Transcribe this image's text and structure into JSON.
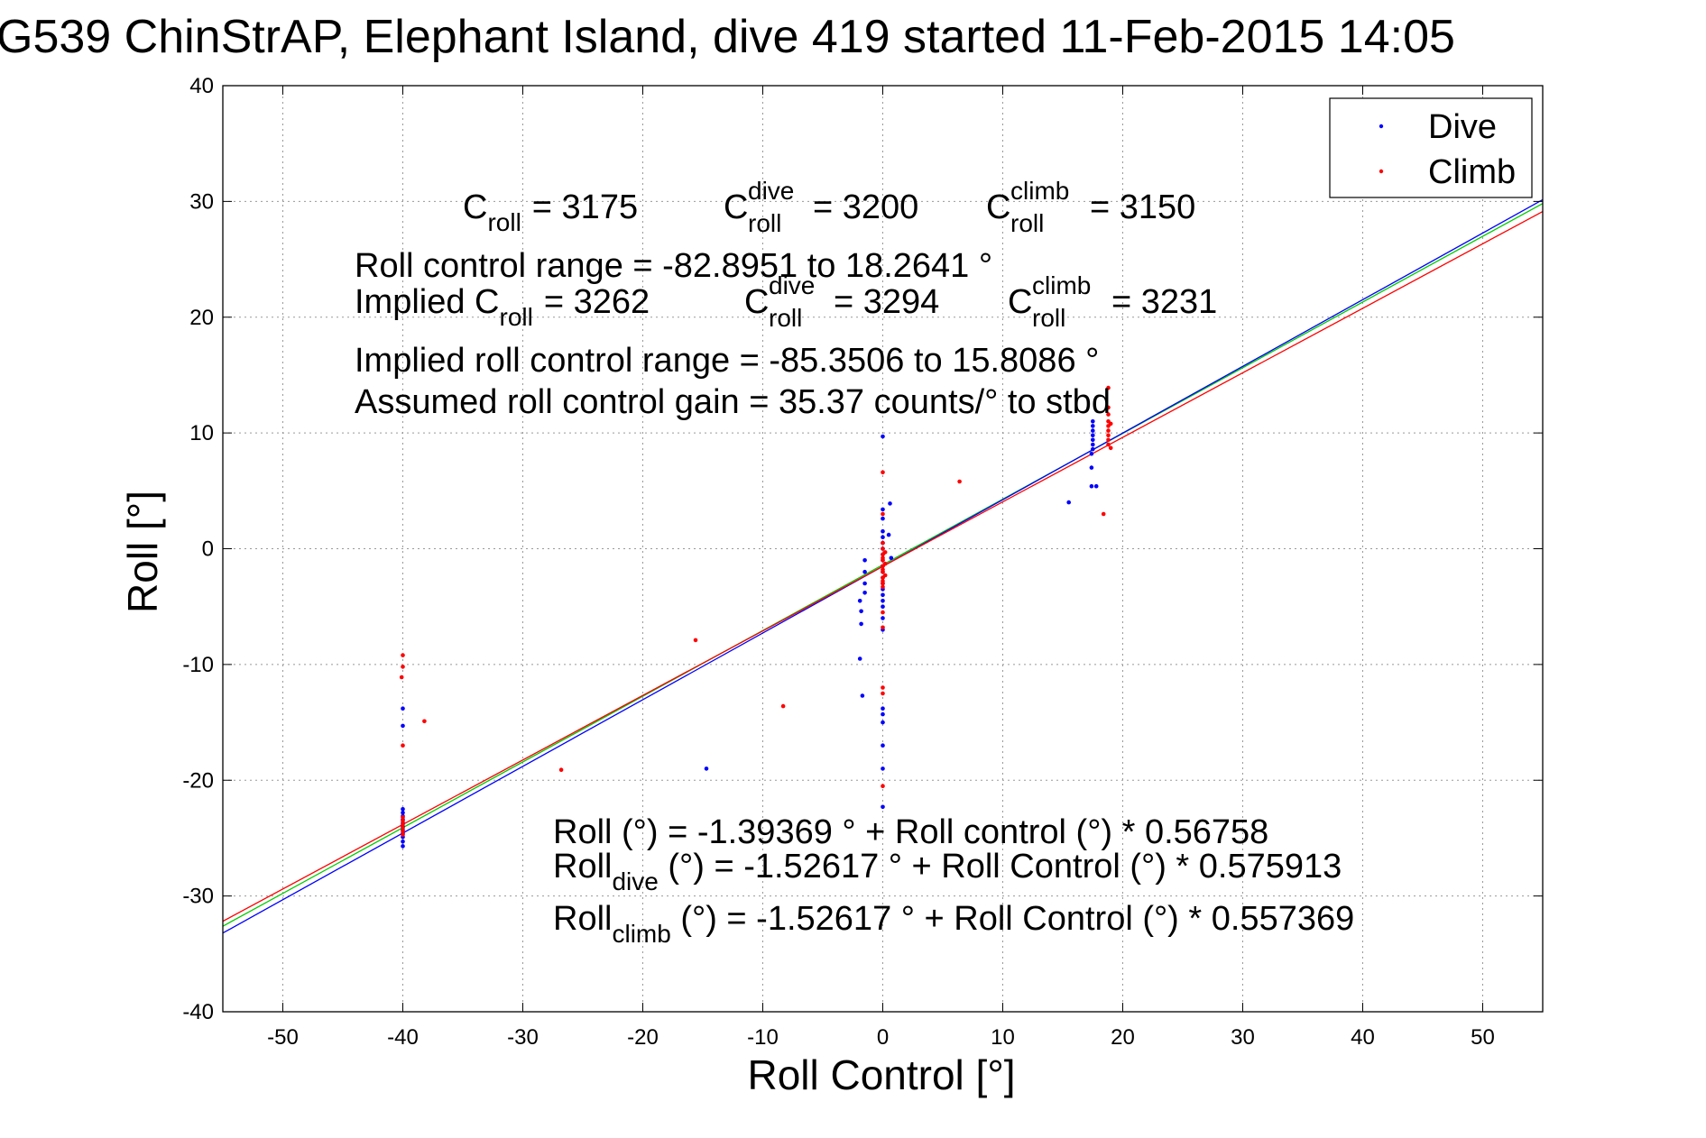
{
  "chart_data": {
    "type": "scatter",
    "title": "G539 ChinStrAP, Elephant Island, dive 419 started 11-Feb-2015 14:05",
    "xlabel": "Roll Control [°]",
    "ylabel": "Roll [°]",
    "xlim": [
      -55,
      55
    ],
    "ylim": [
      -40,
      40
    ],
    "xticks": [
      -50,
      -40,
      -30,
      -20,
      -10,
      0,
      10,
      20,
      30,
      40,
      50
    ],
    "yticks": [
      -40,
      -30,
      -20,
      -10,
      0,
      10,
      20,
      30,
      40
    ],
    "grid": true,
    "legend": {
      "placement": "top-right",
      "entries": [
        {
          "label": "Dive",
          "color": "#0000ff"
        },
        {
          "label": "Climb",
          "color": "#ff0000"
        }
      ]
    },
    "series": [
      {
        "name": "Dive",
        "color": "#0000ff",
        "points": [
          [
            -40,
            -22.5
          ],
          [
            -40,
            -22.8
          ],
          [
            -40,
            -23.1
          ],
          [
            -40,
            -23.4
          ],
          [
            -40,
            -23.7
          ],
          [
            -40,
            -24.0
          ],
          [
            -40,
            -24.3
          ],
          [
            -40,
            -24.6
          ],
          [
            -40,
            -24.9
          ],
          [
            -40,
            -25.3
          ],
          [
            -40,
            -25.7
          ],
          [
            -40,
            -13.8
          ],
          [
            -40,
            -15.3
          ],
          [
            -14.7,
            -19.0
          ],
          [
            -1.9,
            -9.5
          ],
          [
            -1.7,
            -12.7
          ],
          [
            -1.8,
            -5.4
          ],
          [
            -1.8,
            -6.5
          ],
          [
            -1.9,
            -4.5
          ],
          [
            -1.5,
            -1.0
          ],
          [
            -1.5,
            -2.0
          ],
          [
            -1.5,
            -3.0
          ],
          [
            -1.5,
            -3.8
          ],
          [
            0,
            1.5
          ],
          [
            0,
            1.0
          ],
          [
            0,
            0.5
          ],
          [
            0,
            0.0
          ],
          [
            0,
            -0.5
          ],
          [
            0,
            -1.0
          ],
          [
            0,
            -1.5
          ],
          [
            0,
            -2.0
          ],
          [
            0,
            -2.5
          ],
          [
            0,
            -3.0
          ],
          [
            0,
            -3.5
          ],
          [
            0,
            -4.0
          ],
          [
            0,
            -4.5
          ],
          [
            0,
            -5.0
          ],
          [
            0,
            -6.0
          ],
          [
            0,
            -7.0
          ],
          [
            0,
            9.7
          ],
          [
            0,
            3.4
          ],
          [
            0,
            2.6
          ],
          [
            0,
            -13.8
          ],
          [
            0,
            -14.3
          ],
          [
            0,
            -15.0
          ],
          [
            0,
            -17.0
          ],
          [
            0,
            -19.0
          ],
          [
            0,
            -22.3
          ],
          [
            0.6,
            3.9
          ],
          [
            0.5,
            1.2
          ],
          [
            0.7,
            -0.8
          ],
          [
            15.5,
            4.0
          ],
          [
            17.5,
            11.0
          ],
          [
            17.5,
            10.6
          ],
          [
            17.5,
            10.2
          ],
          [
            17.5,
            9.8
          ],
          [
            17.5,
            9.4
          ],
          [
            17.5,
            9.0
          ],
          [
            17.5,
            8.6
          ],
          [
            17.4,
            8.2
          ],
          [
            17.4,
            7.0
          ],
          [
            17.4,
            5.4
          ],
          [
            17.8,
            5.4
          ]
        ]
      },
      {
        "name": "Climb",
        "color": "#ff0000",
        "points": [
          [
            -40,
            -23.2
          ],
          [
            -40,
            -23.5
          ],
          [
            -40,
            -23.8
          ],
          [
            -40,
            -24.1
          ],
          [
            -40,
            -24.4
          ],
          [
            -40,
            -24.7
          ],
          [
            -40,
            -9.2
          ],
          [
            -40,
            -10.2
          ],
          [
            -40.1,
            -11.1
          ],
          [
            -40,
            -17.0
          ],
          [
            -38.2,
            -14.9
          ],
          [
            -26.8,
            -19.1
          ],
          [
            -15.6,
            -7.9
          ],
          [
            -8.3,
            -13.6
          ],
          [
            0,
            0.5
          ],
          [
            0,
            0.0
          ],
          [
            0,
            -0.5
          ],
          [
            0,
            -1.0
          ],
          [
            0,
            -1.5
          ],
          [
            0,
            -2.0
          ],
          [
            0,
            -2.5
          ],
          [
            0,
            -3.0
          ],
          [
            0,
            -3.3
          ],
          [
            0,
            -0.8
          ],
          [
            0,
            -1.8
          ],
          [
            0,
            -2.8
          ],
          [
            0.2,
            -0.3
          ],
          [
            0.2,
            -1.3
          ],
          [
            0.2,
            -2.3
          ],
          [
            0,
            6.6
          ],
          [
            0,
            3.0
          ],
          [
            0,
            -6.8
          ],
          [
            0,
            -12.0
          ],
          [
            0,
            -12.5
          ],
          [
            0,
            -20.5
          ],
          [
            0,
            -5.5
          ],
          [
            6.4,
            5.8
          ],
          [
            18.8,
            13.9
          ],
          [
            18.8,
            12.2
          ],
          [
            18.8,
            11.6
          ],
          [
            18.8,
            11.0
          ],
          [
            18.8,
            10.6
          ],
          [
            18.8,
            10.2
          ],
          [
            18.8,
            9.8
          ],
          [
            18.8,
            9.4
          ],
          [
            18.8,
            9.0
          ],
          [
            19.0,
            8.7
          ],
          [
            19.0,
            10.8
          ],
          [
            18.4,
            3.0
          ]
        ]
      }
    ],
    "fit_lines": [
      {
        "name": "all",
        "color": "#00cc00",
        "intercept": -1.39369,
        "slope": 0.56758
      },
      {
        "name": "dive",
        "color": "#0000ff",
        "intercept": -1.52617,
        "slope": 0.575913
      },
      {
        "name": "climb",
        "color": "#ff0000",
        "intercept": -1.52617,
        "slope": 0.557369
      }
    ],
    "annotations": {
      "c_roll": {
        "letter": "C",
        "sub": "roll",
        "value": "= 3175"
      },
      "c_dive": {
        "letter": "C",
        "sup": "dive",
        "sub": "roll",
        "value": "= 3200"
      },
      "c_climb": {
        "letter": "C",
        "sup": "climb",
        "sub": "roll",
        "value": "= 3150"
      },
      "range": "Roll control range = -82.8951 to 18.2641 °",
      "implied_prefix": "Implied C",
      "implied_sub": "roll",
      "implied_value": "= 3262",
      "implied_dive": {
        "letter": "C",
        "sup": "dive",
        "sub": "roll",
        "value": "= 3294"
      },
      "implied_climb": {
        "letter": "C",
        "sup": "climb",
        "sub": "roll",
        "value": "= 3231"
      },
      "implied_range": "Implied roll control range = -85.3506 to 15.8086 °",
      "gain": "Assumed roll control gain = 35.37 counts/° to stbd",
      "eq_all": "Roll (°) = -1.39369 ° + Roll control (°) * 0.56758",
      "eq_dive_pre": "Roll",
      "eq_dive_sub": "dive",
      "eq_dive_post": " (°) = -1.52617 ° + Roll Control (°) * 0.575913",
      "eq_climb_pre": "Roll",
      "eq_climb_sub": "climb",
      "eq_climb_post": " (°) = -1.52617 ° + Roll Control (°) * 0.557369"
    }
  }
}
